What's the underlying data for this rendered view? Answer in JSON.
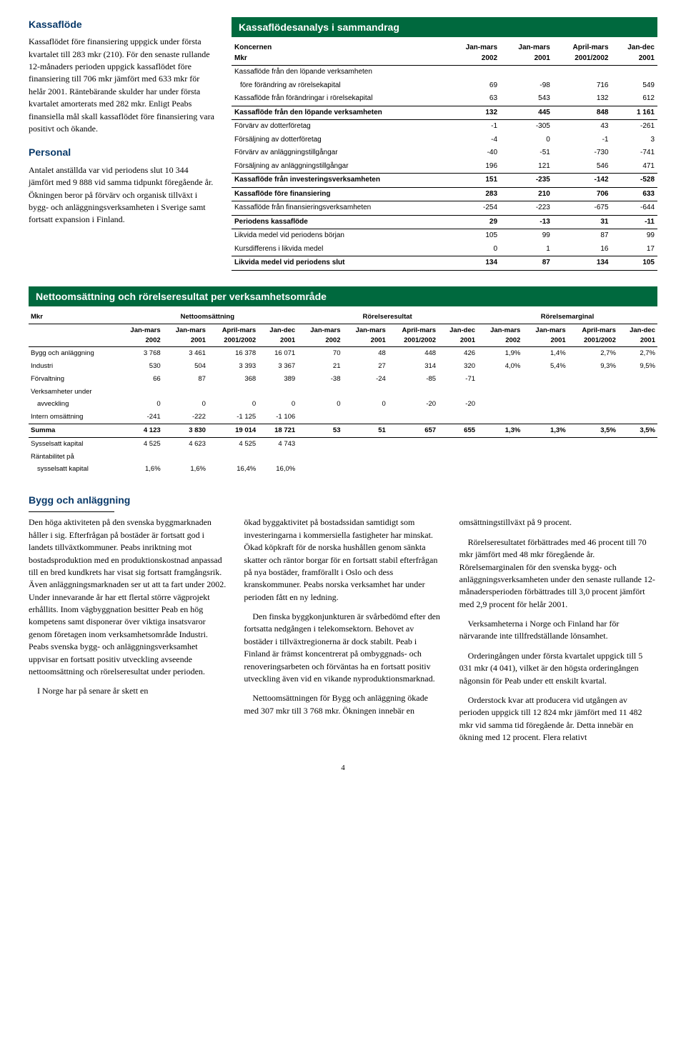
{
  "left": {
    "sec1_title": "Kassaflöde",
    "sec1_p": "Kassaflödet före finansiering uppgick under första kvartalet till 283 mkr (210). För den senaste rullande 12-månaders perioden uppgick kassaflödet före finansiering till 706 mkr jämfört med 633 mkr för helår 2001. Räntebärande skulder har under första kvartalet amorterats med 282 mkr. Enligt Peabs finansiella mål skall kassaflödet före finansiering vara positivt och ökande.",
    "sec2_title": "Personal",
    "sec2_p": "Antalet anställda var vid periodens slut 10 344 jämfört med 9 888 vid samma tidpunkt föregående år. Ökningen beror på förvärv och organisk tillväxt i bygg- och anläggningsverksamheten i Sverige samt fortsatt expansion i Finland."
  },
  "kf": {
    "title": "Kassaflödesanalys i sammandrag",
    "hdr_l1": "Koncernen",
    "hdr_l2": "Mkr",
    "cols": [
      {
        "a": "Jan-mars",
        "b": "2002"
      },
      {
        "a": "Jan-mars",
        "b": "2001"
      },
      {
        "a": "April-mars",
        "b": "2001/2002"
      },
      {
        "a": "Jan-dec",
        "b": "2001"
      }
    ],
    "rows": [
      {
        "lbl": "Kassaflöde från den löpande verksamheten",
        "indent": false,
        "header": true
      },
      {
        "lbl": "före förändring av rörelsekapital",
        "indent": true,
        "v": [
          "69",
          "-98",
          "716",
          "549"
        ]
      },
      {
        "lbl": "Kassaflöde från förändringar i rörelsekapital",
        "v": [
          "63",
          "543",
          "132",
          "612"
        ]
      },
      {
        "lbl": "Kassaflöde från den löpande verksamheten",
        "sum": true,
        "v": [
          "132",
          "445",
          "848",
          "1 161"
        ]
      },
      {
        "lbl": "Förvärv av dotterföretag",
        "v": [
          "-1",
          "-305",
          "43",
          "-261"
        ]
      },
      {
        "lbl": "Försäljning av dotterföretag",
        "v": [
          "-4",
          "0",
          "-1",
          "3"
        ]
      },
      {
        "lbl": "Förvärv av anläggningstillgångar",
        "v": [
          "-40",
          "-51",
          "-730",
          "-741"
        ]
      },
      {
        "lbl": "Försäljning av anläggningstillgångar",
        "v": [
          "196",
          "121",
          "546",
          "471"
        ]
      },
      {
        "lbl": "Kassaflöde från investeringsverksamheten",
        "sum": true,
        "v": [
          "151",
          "-235",
          "-142",
          "-528"
        ]
      },
      {
        "lbl": "Kassaflöde före finansiering",
        "sum": true,
        "v": [
          "283",
          "210",
          "706",
          "633"
        ]
      },
      {
        "lbl": "Kassaflöde från finansieringsverksamheten",
        "v": [
          "-254",
          "-223",
          "-675",
          "-644"
        ]
      },
      {
        "lbl": "Periodens kassaflöde",
        "sum": true,
        "v": [
          "29",
          "-13",
          "31",
          "-11"
        ]
      },
      {
        "lbl": "Likvida medel vid periodens början",
        "v": [
          "105",
          "99",
          "87",
          "99"
        ]
      },
      {
        "lbl": "Kursdifferens i likvida medel",
        "v": [
          "0",
          "1",
          "16",
          "17"
        ]
      },
      {
        "lbl": "Likvida medel vid periodens slut",
        "sum": true,
        "v": [
          "134",
          "87",
          "134",
          "105"
        ]
      }
    ]
  },
  "seg": {
    "title": "Nettoomsättning och rörelseresultat per verksamhetsområde",
    "mkr": "Mkr",
    "groups": [
      "Nettoomsättning",
      "Rörelseresultat",
      "Rörelsemarginal"
    ],
    "cols": [
      {
        "a": "Jan-mars",
        "b": "2002"
      },
      {
        "a": "Jan-mars",
        "b": "2001"
      },
      {
        "a": "April-mars",
        "b": "2001/2002"
      },
      {
        "a": "Jan-dec",
        "b": "2001"
      }
    ],
    "rows": [
      {
        "lbl": "Bygg och anläggning",
        "v": [
          "3 768",
          "3 461",
          "16 378",
          "16 071",
          "70",
          "48",
          "448",
          "426",
          "1,9%",
          "1,4%",
          "2,7%",
          "2,7%"
        ]
      },
      {
        "lbl": "Industri",
        "v": [
          "530",
          "504",
          "3 393",
          "3 367",
          "21",
          "27",
          "314",
          "320",
          "4,0%",
          "5,4%",
          "9,3%",
          "9,5%"
        ]
      },
      {
        "lbl": "Förvaltning",
        "v": [
          "66",
          "87",
          "368",
          "389",
          "-38",
          "-24",
          "-85",
          "-71",
          "",
          "",
          "",
          ""
        ]
      },
      {
        "lbl": "Verksamheter under",
        "header": true
      },
      {
        "lbl": "avveckling",
        "indent": true,
        "v": [
          "0",
          "0",
          "0",
          "0",
          "0",
          "0",
          "-20",
          "-20",
          "",
          "",
          "",
          ""
        ]
      },
      {
        "lbl": "Intern omsättning",
        "v": [
          "-241",
          "-222",
          "-1 125",
          "-1 106",
          "",
          "",
          "",
          "",
          "",
          "",
          "",
          ""
        ]
      },
      {
        "lbl": "Summa",
        "summa": true,
        "v": [
          "4 123",
          "3 830",
          "19 014",
          "18 721",
          "53",
          "51",
          "657",
          "655",
          "1,3%",
          "1,3%",
          "3,5%",
          "3,5%"
        ]
      },
      {
        "lbl": "Sysselsatt kapital",
        "sk": true,
        "v": [
          "4 525",
          "4 623",
          "4 525",
          "4 743",
          "",
          "",
          "",
          "",
          "",
          "",
          "",
          ""
        ]
      },
      {
        "lbl": "Räntabilitet på",
        "header": true
      },
      {
        "lbl": "sysselsatt kapital",
        "indent": true,
        "v": [
          "1,6%",
          "1,6%",
          "16,4%",
          "16,0%",
          "",
          "",
          "",
          "",
          "",
          "",
          "",
          ""
        ]
      }
    ]
  },
  "bottom": {
    "title": "Bygg och anläggning",
    "c1p1": "Den höga aktiviteten på den svenska byggmarknaden håller i sig. Efterfrågan på bostäder är fortsatt god i landets tillväxtkommuner. Peabs inriktning mot bostadsproduktion med en produktionskostnad anpassad till en bred kundkrets har visat sig fortsatt framgångsrik. Även anläggningsmarknaden ser ut att ta fart under 2002. Under innevarande år har ett flertal större vägprojekt erhållits. Inom vägbyggnation besitter Peab en hög kompetens samt disponerar över viktiga insatsvaror genom företagen inom verksamhetsområde Industri. Peabs svenska bygg- och anläggningsverksamhet uppvisar en fortsatt positiv utveckling avseende nettoomsättning och rörelseresultat under perioden.",
    "c1p2": "I Norge har på senare år skett en",
    "c2p1": "ökad byggaktivitet på bostadssidan samtidigt som investeringarna i kommersiella fastigheter har minskat. Ökad köpkraft för de norska hushållen genom sänkta skatter och räntor borgar för en fortsatt stabil efterfrågan på nya bostäder, framförallt i Oslo och dess kranskommuner. Peabs norska verksamhet har under perioden fått en ny ledning.",
    "c2p2": "Den finska byggkonjunkturen är svårbedömd efter den fortsatta nedgången i telekomsektorn. Behovet av bostäder i tillväxtregionerna är dock stabilt. Peab i Finland är främst koncentrerat på ombyggnads- och renoveringsarbeten och förväntas ha en fortsatt positiv utveckling även vid en vikande nyproduktionsmarknad.",
    "c2p3": "Nettoomsättningen för Bygg och anläggning ökade med 307 mkr till 3 768 mkr. Ökningen innebär en",
    "c3p1": "omsättningstillväxt på 9 procent.",
    "c3p2": "Rörelseresultatet förbättrades med 46 procent till 70 mkr jämfört med 48 mkr föregående år. Rörelsemarginalen för den svenska bygg- och anläggningsverksamheten under den senaste rullande 12-månadersperioden förbättrades till 3,0 procent jämfört med 2,9 procent för helår 2001.",
    "c3p3": "Verksamheterna i Norge och Finland har för närvarande inte tillfredställande lönsamhet.",
    "c3p4": "Orderingången under första kvartalet uppgick till 5 031 mkr (4 041), vilket är den högsta orderingången någonsin för Peab under ett enskilt kvartal.",
    "c3p5": "Orderstock kvar att producera vid utgången av perioden uppgick till 12 824 mkr jämfört med 11 482 mkr vid samma tid föregående år. Detta innebär en ökning med 12 procent. Flera relativt"
  },
  "page": "4"
}
